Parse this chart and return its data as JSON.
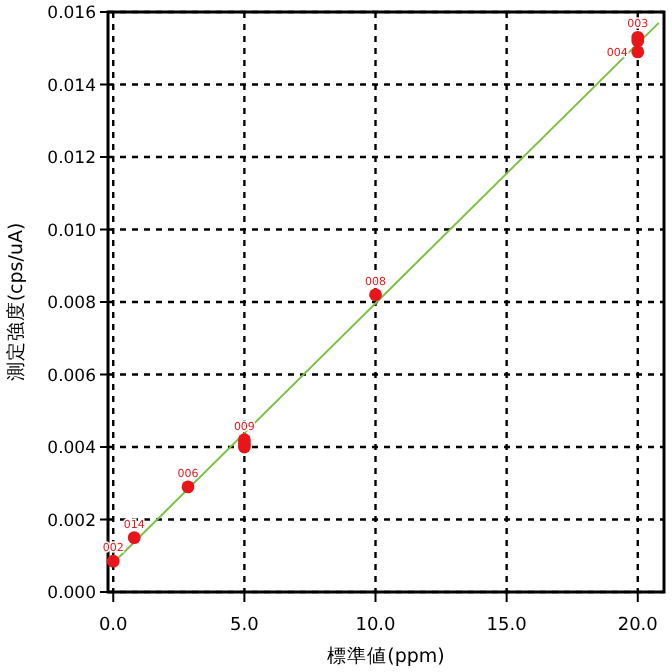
{
  "chart_data": {
    "type": "scatter",
    "xlabel": "標準値(ppm)",
    "ylabel": "測定強度(cps/uA)",
    "xlim": [
      -0.2,
      21
    ],
    "ylim": [
      0,
      0.016
    ],
    "xticks": [
      {
        "value": 0,
        "label": "0.0"
      },
      {
        "value": 5,
        "label": "5.0"
      },
      {
        "value": 10,
        "label": "10.0"
      },
      {
        "value": 15,
        "label": "15.0"
      },
      {
        "value": 20,
        "label": "20.0"
      }
    ],
    "yticks": [
      {
        "value": 0,
        "label": "0.000"
      },
      {
        "value": 0.002,
        "label": "0.002"
      },
      {
        "value": 0.004,
        "label": "0.004"
      },
      {
        "value": 0.006,
        "label": "0.006"
      },
      {
        "value": 0.008,
        "label": "0.008"
      },
      {
        "value": 0.01,
        "label": "0.010"
      },
      {
        "value": 0.012,
        "label": "0.012"
      },
      {
        "value": 0.014,
        "label": "0.014"
      },
      {
        "value": 0.016,
        "label": "0.016"
      }
    ],
    "grid": true,
    "marker": "circle",
    "series": [
      {
        "type": "line",
        "marker": "none",
        "color": "#7cc142",
        "x": [
          0,
          20.8
        ],
        "values": [
          0.0008,
          0.0157
        ]
      },
      {
        "color": "#e8161b",
        "x": [
          0,
          0.8,
          2.85,
          5,
          5,
          5,
          10,
          20,
          20,
          20
        ],
        "values": [
          0.00085,
          0.0015,
          0.0029,
          0.004,
          0.0041,
          0.0042,
          0.0082,
          0.0149,
          0.0152,
          0.0153
        ]
      }
    ],
    "annotations": [
      {
        "text": "002",
        "x": 0,
        "y": 0.00085
      },
      {
        "text": "014",
        "x": 0.8,
        "y": 0.0015
      },
      {
        "text": "006",
        "x": 2.85,
        "y": 0.0029
      },
      {
        "text": "009",
        "x": 5,
        "y": 0.0042
      },
      {
        "text": "008",
        "x": 10,
        "y": 0.0082
      },
      {
        "text": "004",
        "x": 20,
        "y": 0.0149
      },
      {
        "text": "003",
        "x": 20,
        "y": 0.0153
      }
    ]
  }
}
